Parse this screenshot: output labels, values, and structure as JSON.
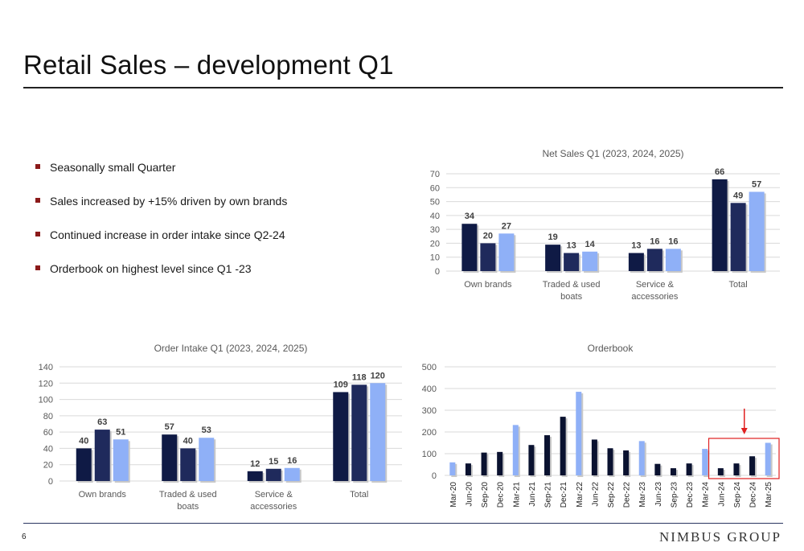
{
  "slide": {
    "title": "Retail Sales – development Q1",
    "page_number": "6",
    "logo_text": "NIMBUS GROUP",
    "bullet_color": "#8b1a1a",
    "bullets": [
      "Seasonally small Quarter",
      "Sales increased by +15% driven by own brands",
      "Continued increase in order intake since Q2-24",
      "Orderbook on highest level since Q1 -23"
    ]
  },
  "colors": {
    "series_2023": "#0f1a45",
    "series_2024": "#1f2a5c",
    "series_2025": "#8fb0f7",
    "orderbook_dark": "#0a1230",
    "orderbook_light": "#8fb0f7",
    "highlight": "#e02020",
    "grid": "#d9d9d9",
    "text": "#595959",
    "label": "#404040"
  },
  "chart_data": [
    {
      "id": "net_sales",
      "type": "bar",
      "title": "Net Sales Q1 (2023, 2024, 2025)",
      "categories": [
        [
          "Own brands"
        ],
        [
          "Traded & used",
          "boats"
        ],
        [
          "Service &",
          "accessories"
        ],
        [
          "Total"
        ]
      ],
      "series": [
        {
          "values": [
            34,
            19,
            13,
            66
          ]
        },
        {
          "values": [
            20,
            13,
            16,
            49
          ]
        },
        {
          "values": [
            27,
            14,
            16,
            57
          ]
        }
      ],
      "ylim": [
        0,
        70
      ],
      "yticks": [
        0,
        10,
        20,
        30,
        40,
        50,
        60,
        70
      ],
      "grid": true
    },
    {
      "id": "order_intake",
      "type": "bar",
      "title": "Order Intake Q1 (2023, 2024, 2025)",
      "categories": [
        [
          "Own brands"
        ],
        [
          "Traded & used",
          "boats"
        ],
        [
          "Service &",
          "accessories"
        ],
        [
          "Total"
        ]
      ],
      "series": [
        {
          "values": [
            40,
            57,
            12,
            109
          ]
        },
        {
          "values": [
            63,
            40,
            15,
            118
          ]
        },
        {
          "values": [
            51,
            53,
            16,
            120
          ]
        }
      ],
      "ylim": [
        0,
        140
      ],
      "yticks": [
        0,
        20,
        40,
        60,
        80,
        100,
        120,
        140
      ],
      "grid": true
    },
    {
      "id": "orderbook",
      "type": "bar",
      "title": "Orderbook",
      "categories": [
        "Mar-20",
        "Jun-20",
        "Sep-20",
        "Dec-20",
        "Mar-21",
        "Jun-21",
        "Sep-21",
        "Dec-21",
        "Mar-22",
        "Jun-22",
        "Sep-22",
        "Dec-22",
        "Mar-23",
        "Jun-23",
        "Sep-23",
        "Dec-23",
        "Mar-24",
        "Jun-24",
        "Sep-24",
        "Dec-24",
        "Mar-25"
      ],
      "values": [
        60,
        55,
        105,
        108,
        232,
        140,
        185,
        270,
        385,
        165,
        125,
        115,
        158,
        53,
        33,
        55,
        122,
        33,
        55,
        88,
        150
      ],
      "highlight_quarters": [
        "Mar-"
      ],
      "highlighted_range": [
        "Jun-24",
        "Mar-25"
      ],
      "ylim": [
        0,
        500
      ],
      "yticks": [
        0,
        100,
        200,
        300,
        400,
        500
      ],
      "grid": true
    }
  ]
}
